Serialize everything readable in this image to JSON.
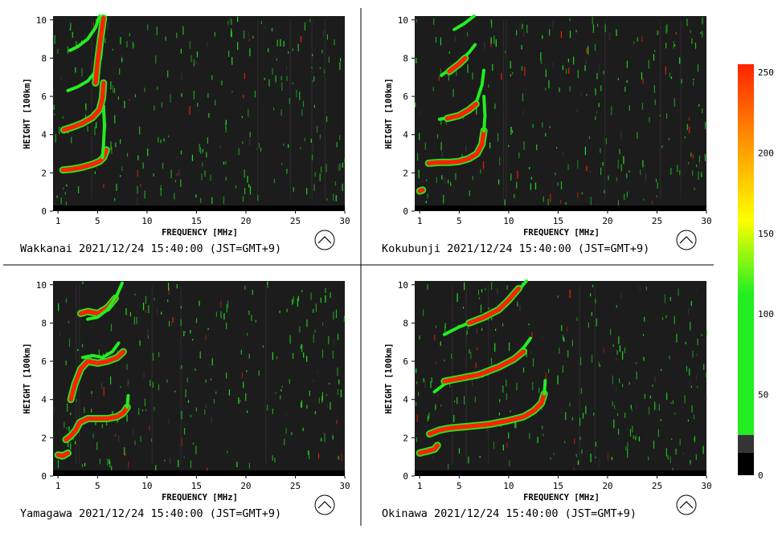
{
  "panels": [
    {
      "station": "Wakkanai",
      "timestamp": "2021/12/24 15:40:00 (JST=GMT+9)",
      "traces": [
        {
          "mode": "red",
          "pts": [
            [
              1.5,
              2.15
            ],
            [
              2.5,
              2.2
            ],
            [
              3.5,
              2.3
            ],
            [
              4.5,
              2.45
            ],
            [
              5.2,
              2.6
            ],
            [
              5.6,
              2.8
            ],
            [
              5.9,
              3.2
            ]
          ]
        },
        {
          "mode": "green",
          "pts": [
            [
              5.5,
              2.8
            ],
            [
              5.6,
              3.5
            ],
            [
              5.7,
              4.5
            ],
            [
              5.6,
              5.5
            ]
          ]
        },
        {
          "mode": "red",
          "pts": [
            [
              1.6,
              4.25
            ],
            [
              2.5,
              4.4
            ],
            [
              3.5,
              4.6
            ],
            [
              4.5,
              4.9
            ],
            [
              5.2,
              5.3
            ],
            [
              5.5,
              5.9
            ],
            [
              5.6,
              6.7
            ]
          ]
        },
        {
          "mode": "green",
          "pts": [
            [
              2.0,
              6.3
            ],
            [
              3.0,
              6.5
            ],
            [
              4.0,
              6.8
            ],
            [
              4.8,
              7.3
            ],
            [
              5.3,
              8.0
            ],
            [
              5.5,
              9.0
            ]
          ]
        },
        {
          "mode": "green",
          "pts": [
            [
              2.2,
              8.4
            ],
            [
              3.0,
              8.6
            ],
            [
              4.0,
              9.0
            ],
            [
              4.8,
              9.6
            ],
            [
              5.2,
              10.2
            ]
          ]
        },
        {
          "mode": "red",
          "pts": [
            [
              4.8,
              6.7
            ],
            [
              5.0,
              7.8
            ],
            [
              5.3,
              9.0
            ],
            [
              5.6,
              10.1
            ]
          ]
        }
      ]
    },
    {
      "station": "Kokubunji",
      "timestamp": "2021/12/24 15:40:00 (JST=GMT+9)",
      "traces": [
        {
          "mode": "red",
          "pts": [
            [
              1.0,
              1.05
            ],
            [
              1.3,
              1.1
            ]
          ]
        },
        {
          "mode": "red",
          "pts": [
            [
              1.9,
              2.5
            ],
            [
              3,
              2.55
            ],
            [
              4,
              2.55
            ],
            [
              5,
              2.6
            ],
            [
              6,
              2.75
            ],
            [
              6.8,
              3.0
            ],
            [
              7.3,
              3.5
            ],
            [
              7.5,
              4.2
            ]
          ]
        },
        {
          "mode": "green",
          "pts": [
            [
              7.5,
              4.2
            ],
            [
              7.6,
              5.0
            ],
            [
              7.5,
              6.0
            ]
          ]
        },
        {
          "mode": "green",
          "pts": [
            [
              3.0,
              4.8
            ],
            [
              4,
              4.9
            ],
            [
              5,
              5.0
            ],
            [
              6,
              5.3
            ],
            [
              6.8,
              5.8
            ],
            [
              7.3,
              6.6
            ],
            [
              7.5,
              7.4
            ]
          ]
        },
        {
          "mode": "red",
          "pts": [
            [
              3.8,
              4.85
            ],
            [
              5,
              5.0
            ],
            [
              6,
              5.3
            ],
            [
              6.7,
              5.6
            ]
          ]
        },
        {
          "mode": "green",
          "pts": [
            [
              3.2,
              7.1
            ],
            [
              4,
              7.4
            ],
            [
              5,
              7.8
            ],
            [
              6,
              8.3
            ],
            [
              6.6,
              8.7
            ]
          ]
        },
        {
          "mode": "red",
          "pts": [
            [
              4.0,
              7.3
            ],
            [
              5,
              7.7
            ],
            [
              5.6,
              8.0
            ]
          ]
        },
        {
          "mode": "green",
          "pts": [
            [
              4.5,
              9.5
            ],
            [
              5.5,
              9.8
            ],
            [
              6.5,
              10.2
            ]
          ]
        }
      ]
    },
    {
      "station": "Yamagawa",
      "timestamp": "2021/12/24 15:40:00 (JST=GMT+9)",
      "traces": [
        {
          "mode": "red",
          "pts": [
            [
              1.0,
              1.1
            ],
            [
              1.5,
              1.05
            ],
            [
              2.0,
              1.2
            ]
          ]
        },
        {
          "mode": "red",
          "pts": [
            [
              1.8,
              1.9
            ],
            [
              2.3,
              2.1
            ],
            [
              2.8,
              2.4
            ],
            [
              3.2,
              2.8
            ],
            [
              4,
              3.0
            ],
            [
              5,
              3.0
            ],
            [
              6,
              3.0
            ],
            [
              7,
              3.1
            ],
            [
              7.6,
              3.3
            ],
            [
              8.0,
              3.6
            ]
          ]
        },
        {
          "mode": "green",
          "pts": [
            [
              8.0,
              3.6
            ],
            [
              8.1,
              4.2
            ]
          ]
        },
        {
          "mode": "red",
          "pts": [
            [
              2.3,
              4.0
            ],
            [
              2.7,
              4.8
            ],
            [
              3.3,
              5.6
            ],
            [
              4,
              6.0
            ],
            [
              5,
              5.9
            ],
            [
              6,
              6.0
            ],
            [
              7,
              6.2
            ],
            [
              7.6,
              6.5
            ]
          ]
        },
        {
          "mode": "green",
          "pts": [
            [
              3.5,
              6.2
            ],
            [
              4.5,
              6.3
            ],
            [
              5.5,
              6.2
            ],
            [
              6.5,
              6.5
            ],
            [
              7.2,
              7.0
            ]
          ]
        },
        {
          "mode": "red",
          "pts": [
            [
              3.3,
              8.5
            ],
            [
              4,
              8.6
            ],
            [
              5,
              8.5
            ],
            [
              6,
              8.8
            ],
            [
              6.8,
              9.3
            ]
          ]
        },
        {
          "mode": "green",
          "pts": [
            [
              4,
              8.2
            ],
            [
              5,
              8.3
            ],
            [
              6,
              8.7
            ],
            [
              7,
              9.5
            ],
            [
              7.5,
              10.1
            ]
          ]
        }
      ]
    },
    {
      "station": "Okinawa",
      "timestamp": "2021/12/24 15:40:00 (JST=GMT+9)",
      "traces": [
        {
          "mode": "red",
          "pts": [
            [
              1.0,
              1.2
            ],
            [
              1.8,
              1.3
            ],
            [
              2.5,
              1.4
            ],
            [
              2.8,
              1.6
            ]
          ]
        },
        {
          "mode": "red",
          "pts": [
            [
              2.0,
              2.2
            ],
            [
              3,
              2.4
            ],
            [
              4,
              2.5
            ],
            [
              6,
              2.6
            ],
            [
              8,
              2.7
            ],
            [
              10,
              2.9
            ],
            [
              11.5,
              3.1
            ],
            [
              12.5,
              3.4
            ],
            [
              13.3,
              3.8
            ],
            [
              13.6,
              4.3
            ]
          ]
        },
        {
          "mode": "green",
          "pts": [
            [
              13.6,
              4.3
            ],
            [
              13.7,
              5.0
            ]
          ]
        },
        {
          "mode": "green",
          "pts": [
            [
              2.5,
              4.4
            ],
            [
              3.5,
              4.8
            ],
            [
              5,
              5.1
            ],
            [
              7,
              5.4
            ],
            [
              9,
              5.8
            ],
            [
              10.5,
              6.2
            ],
            [
              11.5,
              6.7
            ],
            [
              12.2,
              7.2
            ]
          ]
        },
        {
          "mode": "red",
          "pts": [
            [
              3.5,
              4.95
            ],
            [
              5,
              5.1
            ],
            [
              7,
              5.3
            ],
            [
              9,
              5.7
            ],
            [
              10.5,
              6.1
            ],
            [
              11.5,
              6.5
            ]
          ]
        },
        {
          "mode": "green",
          "pts": [
            [
              3.5,
              7.4
            ],
            [
              5,
              7.8
            ],
            [
              6.5,
              8.1
            ],
            [
              8,
              8.4
            ],
            [
              9.5,
              8.9
            ],
            [
              10.8,
              9.6
            ],
            [
              11.8,
              10.2
            ]
          ]
        },
        {
          "mode": "red",
          "pts": [
            [
              6,
              8.0
            ],
            [
              7.5,
              8.3
            ],
            [
              9,
              8.7
            ],
            [
              10,
              9.2
            ],
            [
              11,
              9.8
            ]
          ]
        }
      ]
    }
  ],
  "axis": {
    "xlabel": "FREQUENCY [MHz]",
    "ylabel": "HEIGHT [100km]",
    "xticks": [
      "1",
      "5",
      "10",
      "15",
      "20",
      "25",
      "30"
    ],
    "xtick_values": [
      1,
      5,
      10,
      15,
      20,
      25,
      30
    ],
    "yticks": [
      "0",
      "2",
      "4",
      "6",
      "8",
      "10"
    ],
    "ytick_values": [
      0,
      2,
      4,
      6,
      8,
      10
    ],
    "xlim": [
      0.5,
      30
    ],
    "ylim": [
      0,
      10.2
    ]
  },
  "colorbar": {
    "labels": [
      "250",
      "200",
      "150",
      "100",
      "50",
      "0"
    ],
    "values": [
      250,
      200,
      150,
      100,
      50,
      0
    ],
    "range": [
      0,
      255
    ]
  },
  "colors": {
    "background": "#1c1c1c",
    "low": "#22ee22",
    "mid": "#ffff00",
    "high": "#ff2200"
  }
}
